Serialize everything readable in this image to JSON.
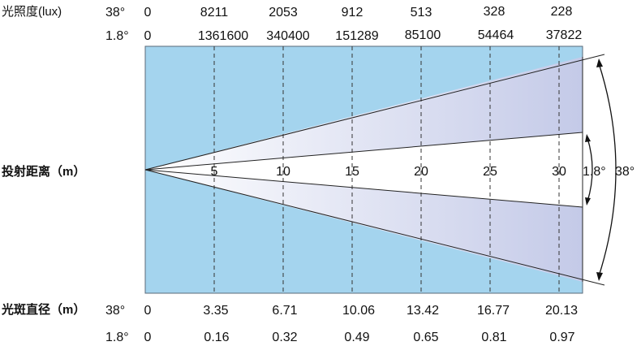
{
  "illuminance": {
    "label": "光照度(lux)",
    "rows": [
      {
        "angle": "38°",
        "values": [
          "0",
          "8211",
          "2053",
          "912",
          "513",
          "328",
          "228"
        ]
      },
      {
        "angle": "1.8°",
        "values": [
          "0",
          "1361600",
          "340400",
          "151289",
          "85100",
          "54464",
          "37822"
        ]
      }
    ]
  },
  "distance": {
    "label": "投射距离（m）",
    "marks": [
      "5",
      "10",
      "15",
      "20",
      "25",
      "30"
    ]
  },
  "beam_angles": {
    "narrow": "1.8°",
    "wide": "38°"
  },
  "spot_diameter": {
    "label": "光斑直径（m）",
    "rows": [
      {
        "angle": "38°",
        "values": [
          "0",
          "3.35",
          "6.71",
          "10.06",
          "13.42",
          "16.77",
          "20.13"
        ]
      },
      {
        "angle": "1.8°",
        "values": [
          "0",
          "0.16",
          "0.32",
          "0.49",
          "0.65",
          "0.81",
          "0.97"
        ]
      }
    ]
  },
  "colors": {
    "panel_fill": "#a4d4ee",
    "panel_stroke": "#5a6a78",
    "beam_light": "#ffffff",
    "beam_dark": "#c4cae8",
    "line": "#333333"
  }
}
